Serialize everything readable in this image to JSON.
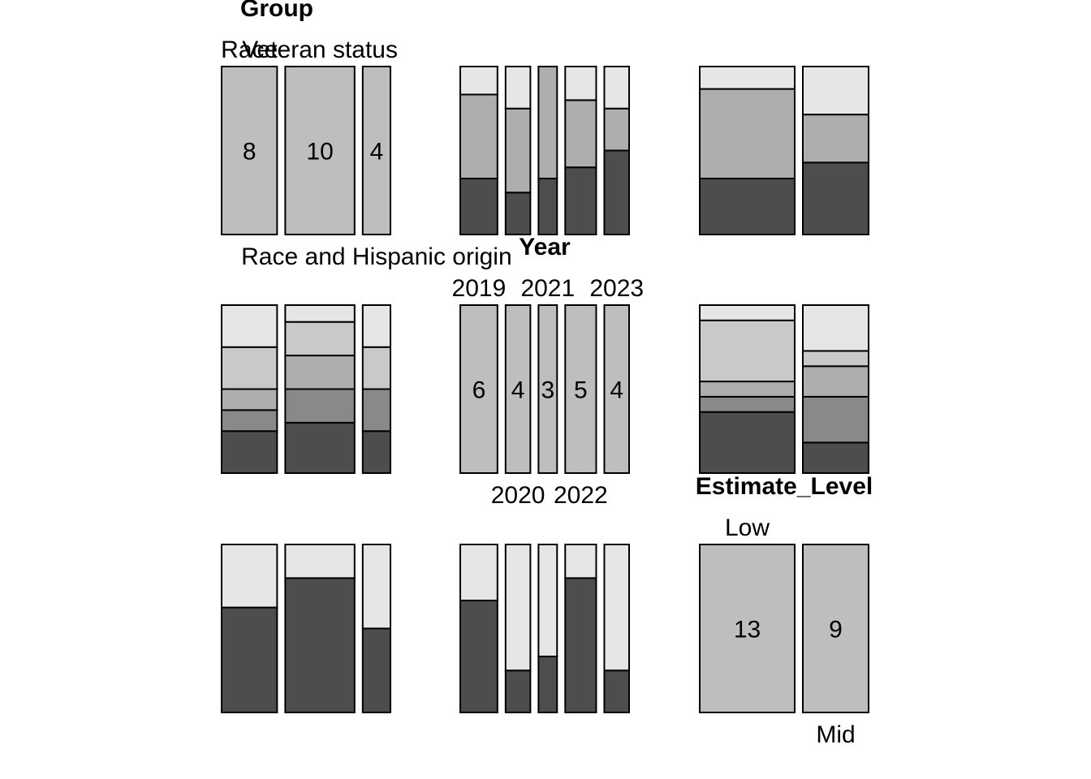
{
  "chart_data": {
    "type": "mosaic-pairs",
    "variables": [
      {
        "name": "Group",
        "levels": [
          "Race",
          "Veteran status",
          "Race and Hispanic origin"
        ],
        "counts": [
          8,
          10,
          4
        ]
      },
      {
        "name": "Year",
        "levels": [
          "2019",
          "2020",
          "2021",
          "2022",
          "2023"
        ],
        "counts": [
          6,
          4,
          3,
          5,
          4
        ]
      },
      {
        "name": "Estimate_Level",
        "levels": [
          "Low",
          "Mid"
        ],
        "counts": [
          13,
          9
        ]
      }
    ],
    "crosstabs": {
      "Group_by_Year": [
        [
          2,
          1,
          1,
          2,
          2
        ],
        [
          3,
          2,
          2,
          2,
          1
        ],
        [
          1,
          1,
          0,
          1,
          1
        ]
      ],
      "Group_by_Estimate_Level": [
        [
          5,
          3
        ],
        [
          8,
          2
        ],
        [
          2,
          2
        ]
      ],
      "Year_by_Estimate_Level": [
        [
          4,
          2
        ],
        [
          1,
          3
        ],
        [
          1,
          2
        ],
        [
          4,
          1
        ],
        [
          1,
          3
        ]
      ]
    },
    "fill_colors": [
      "#4d4d4d",
      "#aeaeae",
      "#e6e6e6",
      "#bebebe",
      "#898989",
      "#c9c9c9"
    ]
  }
}
